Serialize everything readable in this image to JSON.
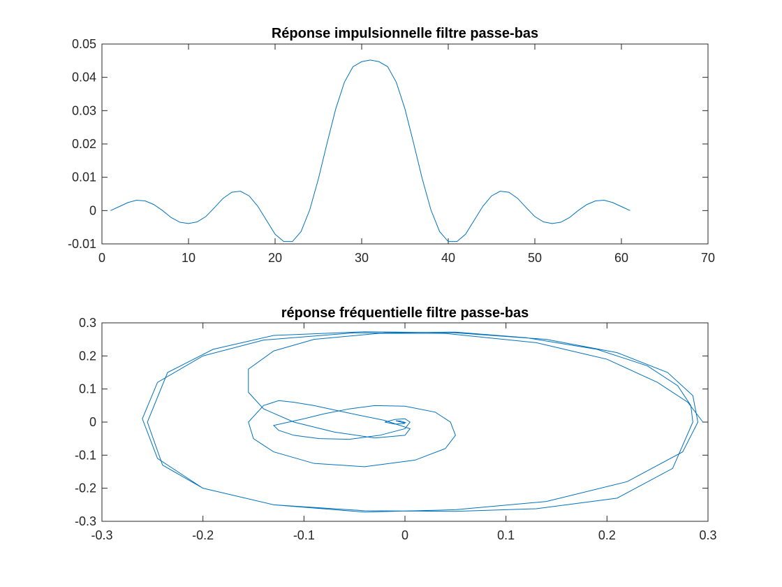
{
  "figure": {
    "colors": {
      "series": "#0072BD",
      "axis": "#262626",
      "background": "#ffffff"
    }
  },
  "chart_data": [
    {
      "type": "line",
      "title": "Réponse impulsionnelle filtre passe-bas",
      "xlabel": "",
      "ylabel": "",
      "xlim": [
        0,
        70
      ],
      "ylim": [
        -0.01,
        0.05
      ],
      "xticks": [
        0,
        10,
        20,
        30,
        40,
        50,
        60,
        70
      ],
      "xtick_labels": [
        "0",
        "10",
        "20",
        "30",
        "40",
        "50",
        "60",
        "70"
      ],
      "yticks": [
        -0.01,
        0,
        0.01,
        0.02,
        0.03,
        0.04,
        0.05
      ],
      "ytick_labels": [
        "-0.01",
        "0",
        "0.01",
        "0.02",
        "0.03",
        "0.04",
        "0.05"
      ],
      "grid": false,
      "series": [
        {
          "x": [
            1,
            2,
            3,
            4,
            5,
            6,
            7,
            8,
            9,
            10,
            11,
            12,
            13,
            14,
            15,
            16,
            17,
            18,
            19,
            20,
            21,
            22,
            23,
            24,
            25,
            26,
            27,
            28,
            29,
            30,
            31,
            32,
            33,
            34,
            35,
            36,
            37,
            38,
            39,
            40,
            41,
            42,
            43,
            44,
            45,
            46,
            47,
            48,
            49,
            50,
            51,
            52,
            53,
            54,
            55,
            56,
            57,
            58,
            59,
            60,
            61
          ],
          "values": [
            0,
            0.0012,
            0.0024,
            0.0031,
            0.0029,
            0.0018,
            0.0,
            -0.0021,
            -0.0035,
            -0.0039,
            -0.0034,
            -0.0018,
            0.0009,
            0.0037,
            0.0055,
            0.0058,
            0.0044,
            0.0013,
            -0.0029,
            -0.0071,
            -0.0093,
            -0.0093,
            -0.0063,
            0.0002,
            0.0095,
            0.0202,
            0.0305,
            0.0385,
            0.0432,
            0.0447,
            0.0452,
            0.0447,
            0.0432,
            0.0385,
            0.0305,
            0.0202,
            0.0095,
            0.0002,
            -0.0063,
            -0.0093,
            -0.0093,
            -0.0071,
            -0.0029,
            0.0013,
            0.0044,
            0.0058,
            0.0055,
            0.0037,
            0.0009,
            -0.0018,
            -0.0034,
            -0.0039,
            -0.0035,
            -0.0021,
            0.0,
            0.0018,
            0.0029,
            0.0031,
            0.0024,
            0.0012,
            0
          ]
        }
      ]
    },
    {
      "type": "line",
      "title": "réponse fréquentielle filtre passe-bas",
      "xlabel": "",
      "ylabel": "",
      "xlim": [
        -0.3,
        0.3
      ],
      "ylim": [
        -0.3,
        0.3
      ],
      "xticks": [
        -0.3,
        -0.2,
        -0.1,
        0,
        0.1,
        0.2,
        0.3
      ],
      "xtick_labels": [
        "-0.3",
        "-0.2",
        "-0.1",
        "0",
        "0.1",
        "0.2",
        "0.3"
      ],
      "yticks": [
        -0.3,
        -0.2,
        -0.1,
        0,
        0.1,
        0.2,
        0.3
      ],
      "ytick_labels": [
        "-0.3",
        "-0.2",
        "-0.1",
        "0",
        "0.1",
        "0.2",
        "0.3"
      ],
      "grid": false,
      "series": [
        {
          "x": [
            0.295,
            0.28,
            0.25,
            0.2,
            0.13,
            0.04,
            -0.05,
            -0.14,
            -0.2,
            -0.245,
            -0.26,
            -0.245,
            -0.2,
            -0.13,
            -0.04,
            0.05,
            0.14,
            0.22,
            0.275,
            0.29,
            0.285,
            0.26,
            0.21,
            0.14,
            0.05,
            -0.04,
            -0.13,
            -0.19,
            -0.235,
            -0.255,
            -0.24,
            -0.2,
            -0.13,
            -0.04,
            0.05,
            0.13,
            0.21,
            0.265,
            0.285,
            0.283,
            0.27,
            0.24,
            0.19,
            0.12,
            0.05,
            -0.02,
            -0.09,
            -0.13,
            -0.155,
            -0.155,
            -0.14,
            -0.11,
            -0.07,
            -0.03,
            0.0,
            0.005,
            -0.02,
            -0.06,
            -0.09,
            -0.11,
            -0.125,
            -0.14,
            -0.155,
            -0.15,
            -0.13,
            -0.09,
            -0.04,
            0.01,
            0.04,
            0.05,
            0.045,
            0.03,
            0.0,
            -0.03,
            -0.055,
            -0.08,
            -0.1,
            -0.115,
            -0.13,
            -0.125,
            -0.11,
            -0.085,
            -0.055,
            -0.025,
            0.0,
            0.005,
            0.0,
            -0.01,
            -0.02,
            -0.01,
            0.0,
            -0.004,
            -0.009,
            -0.004,
            0.001,
            -0.002
          ],
          "values": [
            0.0,
            0.06,
            0.12,
            0.19,
            0.24,
            0.268,
            0.27,
            0.248,
            0.2,
            0.12,
            0.01,
            -0.11,
            -0.2,
            -0.25,
            -0.272,
            -0.265,
            -0.24,
            -0.18,
            -0.09,
            0.0,
            0.08,
            0.15,
            0.21,
            0.25,
            0.27,
            0.273,
            0.262,
            0.22,
            0.15,
            0.0,
            -0.13,
            -0.2,
            -0.25,
            -0.268,
            -0.27,
            -0.262,
            -0.23,
            -0.14,
            0.0,
            0.05,
            0.11,
            0.17,
            0.22,
            0.255,
            0.272,
            0.27,
            0.25,
            0.215,
            0.16,
            0.09,
            0.04,
            0.0,
            -0.03,
            -0.048,
            -0.04,
            -0.02,
            0.005,
            0.03,
            0.05,
            0.06,
            0.065,
            0.05,
            0.0,
            -0.05,
            -0.09,
            -0.125,
            -0.135,
            -0.115,
            -0.08,
            -0.04,
            0.0,
            0.03,
            0.048,
            0.05,
            0.04,
            0.025,
            0.01,
            0.0,
            -0.01,
            -0.025,
            -0.04,
            -0.05,
            -0.052,
            -0.04,
            -0.02,
            0.0,
            0.01,
            0.008,
            0.0,
            -0.006,
            -0.004,
            0.0,
            0.004,
            0.003,
            -0.002,
            0.0
          ]
        }
      ]
    }
  ]
}
